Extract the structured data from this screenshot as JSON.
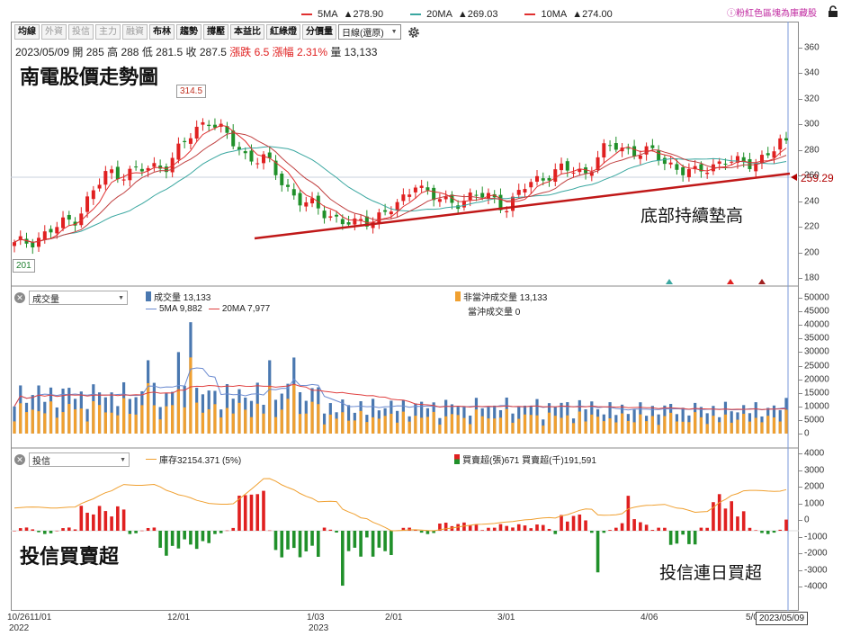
{
  "top_legend": {
    "ma5": {
      "label": "5MA",
      "value": "▲278.90",
      "color": "#e03030"
    },
    "ma20": {
      "label": "20MA",
      "value": "▲269.03",
      "color": "#3aa7a0"
    },
    "ma10": {
      "label": "10MA",
      "value": "▲274.00",
      "color": "#e03030"
    }
  },
  "brand": "ⓘ粉紅色區塊為庫藏股",
  "toolbar": {
    "buttons": [
      "均線",
      "外資",
      "投信",
      "主力",
      "融資",
      "布林",
      "趨勢",
      "撐壓",
      "本益比",
      "紅綠燈",
      "分價量"
    ],
    "active": [
      0,
      5,
      6,
      7,
      8,
      9,
      10
    ],
    "period_select": "日線(還原)"
  },
  "info": {
    "date": "2023/05/09",
    "open": "開 285",
    "high": "高 288",
    "low": "低 281.5",
    "close": "收 287.5",
    "change": "漲跌 6.5",
    "pct": "漲幅 2.31%",
    "volume": "量 13,133"
  },
  "titles": {
    "price": "南電股價走勢圖",
    "trend_note": "底部持續墊高",
    "inst": "投信買賣超",
    "inst_note": "投信連日買超"
  },
  "callouts": {
    "high": "314.5",
    "low": "201"
  },
  "current_price_label": "259.29",
  "volume_pane": {
    "select": "成交量",
    "legend_volume": "成交量 13,133",
    "legend_non_daytrade": "非當沖成交量 13,133",
    "legend_daytrade": "當沖成交量 0",
    "ma5": "5MA 9,882",
    "ma20": "20MA 7,977",
    "colors": {
      "volume": "#4a78b0",
      "non_daytrade": "#f0a030",
      "ma5": "#6a8ad0",
      "ma20": "#e04040"
    }
  },
  "inst_pane": {
    "select": "投信",
    "legend_inventory": "庫存32154.371 (5%)",
    "legend_net": "買賣超(張)671 買賣超(千)191,591",
    "colors": {
      "buy": "#e02020",
      "sell": "#20902a",
      "inventory": "#f0a030"
    }
  },
  "price_axis": [
    "360",
    "340",
    "320",
    "300",
    "280",
    "260",
    "240",
    "220",
    "200",
    "180"
  ],
  "volume_axis": [
    "50000",
    "45000",
    "40000",
    "35000",
    "30000",
    "25000",
    "20000",
    "15000",
    "10000",
    "5000",
    "0"
  ],
  "inst_axis": [
    "4000",
    "3000",
    "2000",
    "1000",
    "0",
    "-1000",
    "-2000",
    "-3000",
    "-4000"
  ],
  "x_labels": [
    {
      "text": "10/2611/01",
      "sub": "2022"
    },
    {
      "text": "12/01",
      "sub": ""
    },
    {
      "text": "1/03",
      "sub": "2023"
    },
    {
      "text": "2/01",
      "sub": ""
    },
    {
      "text": "3/01",
      "sub": ""
    },
    {
      "text": "4/06",
      "sub": ""
    },
    {
      "text": "5/0",
      "sub": ""
    }
  ],
  "cursor_date": "2023/05/09"
}
